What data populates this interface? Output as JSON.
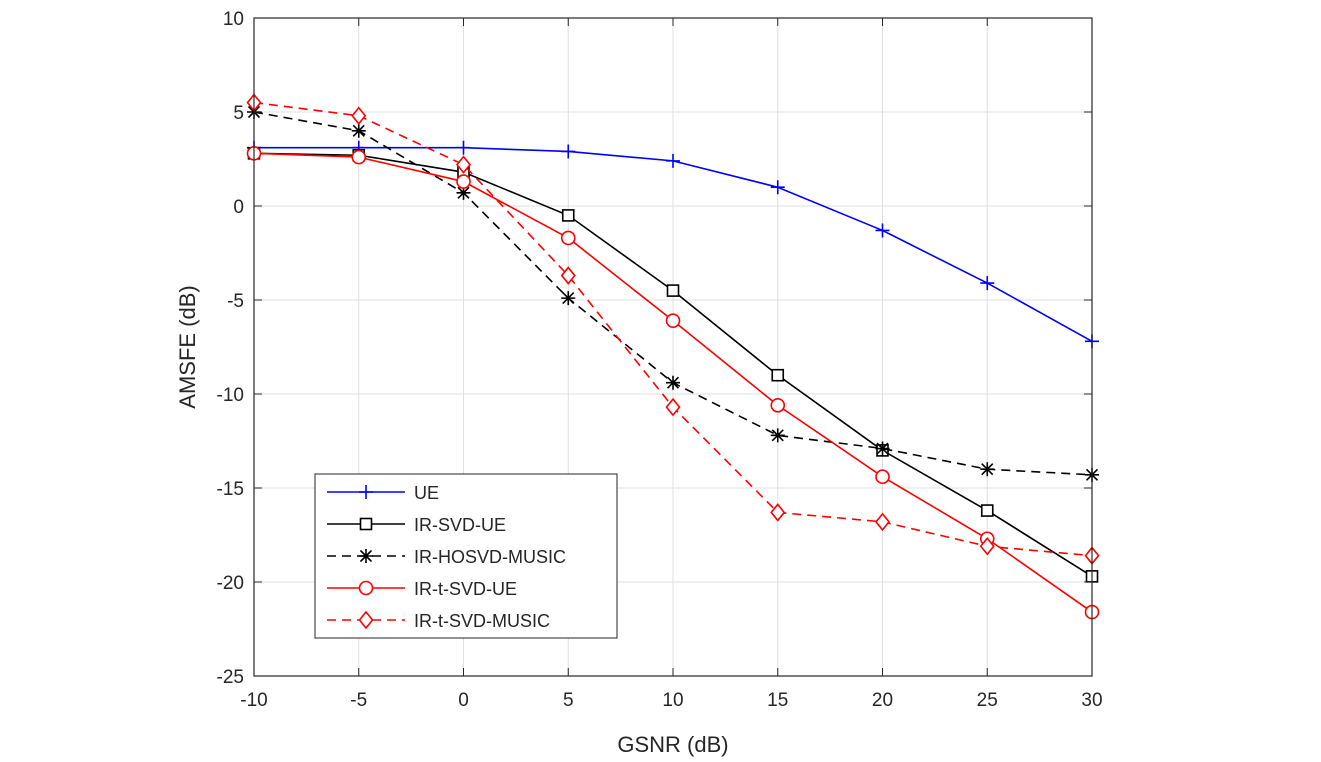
{
  "chart_data": {
    "type": "line",
    "title": "",
    "xlabel": "GSNR (dB)",
    "ylabel": "AMSFE (dB)",
    "xlim": [
      -10,
      30
    ],
    "ylim": [
      -25,
      10
    ],
    "grid": true,
    "legend_position": "bottom-left",
    "x": [
      -10,
      -5,
      0,
      5,
      10,
      15,
      20,
      25,
      30
    ],
    "x_ticks": [
      "-10",
      "-5",
      "0",
      "5",
      "10",
      "15",
      "20",
      "25",
      "30"
    ],
    "y_ticks": [
      "10",
      "5",
      "0",
      "-5",
      "-10",
      "-15",
      "-20",
      "-25"
    ],
    "series": [
      {
        "name": "UE",
        "color": "#0000ff",
        "marker": "plus",
        "dashed": false,
        "values": [
          3.1,
          3.1,
          3.1,
          2.9,
          2.4,
          1.0,
          -1.3,
          -4.1,
          -7.2
        ]
      },
      {
        "name": "IR-SVD-UE",
        "color": "#000000",
        "marker": "square",
        "dashed": false,
        "values": [
          2.8,
          2.7,
          1.8,
          -0.5,
          -4.5,
          -9.0,
          -13.0,
          -16.2,
          -19.7
        ]
      },
      {
        "name": "IR-HOSVD-MUSIC",
        "color": "#000000",
        "marker": "star",
        "dashed": true,
        "values": [
          5.0,
          4.0,
          0.7,
          -4.9,
          -9.4,
          -12.2,
          -12.9,
          -14.0,
          -14.3
        ]
      },
      {
        "name": "IR-t-SVD-UE",
        "color": "#ff0000",
        "marker": "circle",
        "dashed": false,
        "values": [
          2.8,
          2.6,
          1.3,
          -1.7,
          -6.1,
          -10.6,
          -14.4,
          -17.7,
          -21.6
        ]
      },
      {
        "name": "IR-t-SVD-MUSIC",
        "color": "#ff0000",
        "marker": "diamond",
        "dashed": true,
        "values": [
          5.5,
          4.8,
          2.2,
          -3.7,
          -10.7,
          -16.3,
          -16.8,
          -18.1,
          -18.6
        ]
      }
    ]
  }
}
